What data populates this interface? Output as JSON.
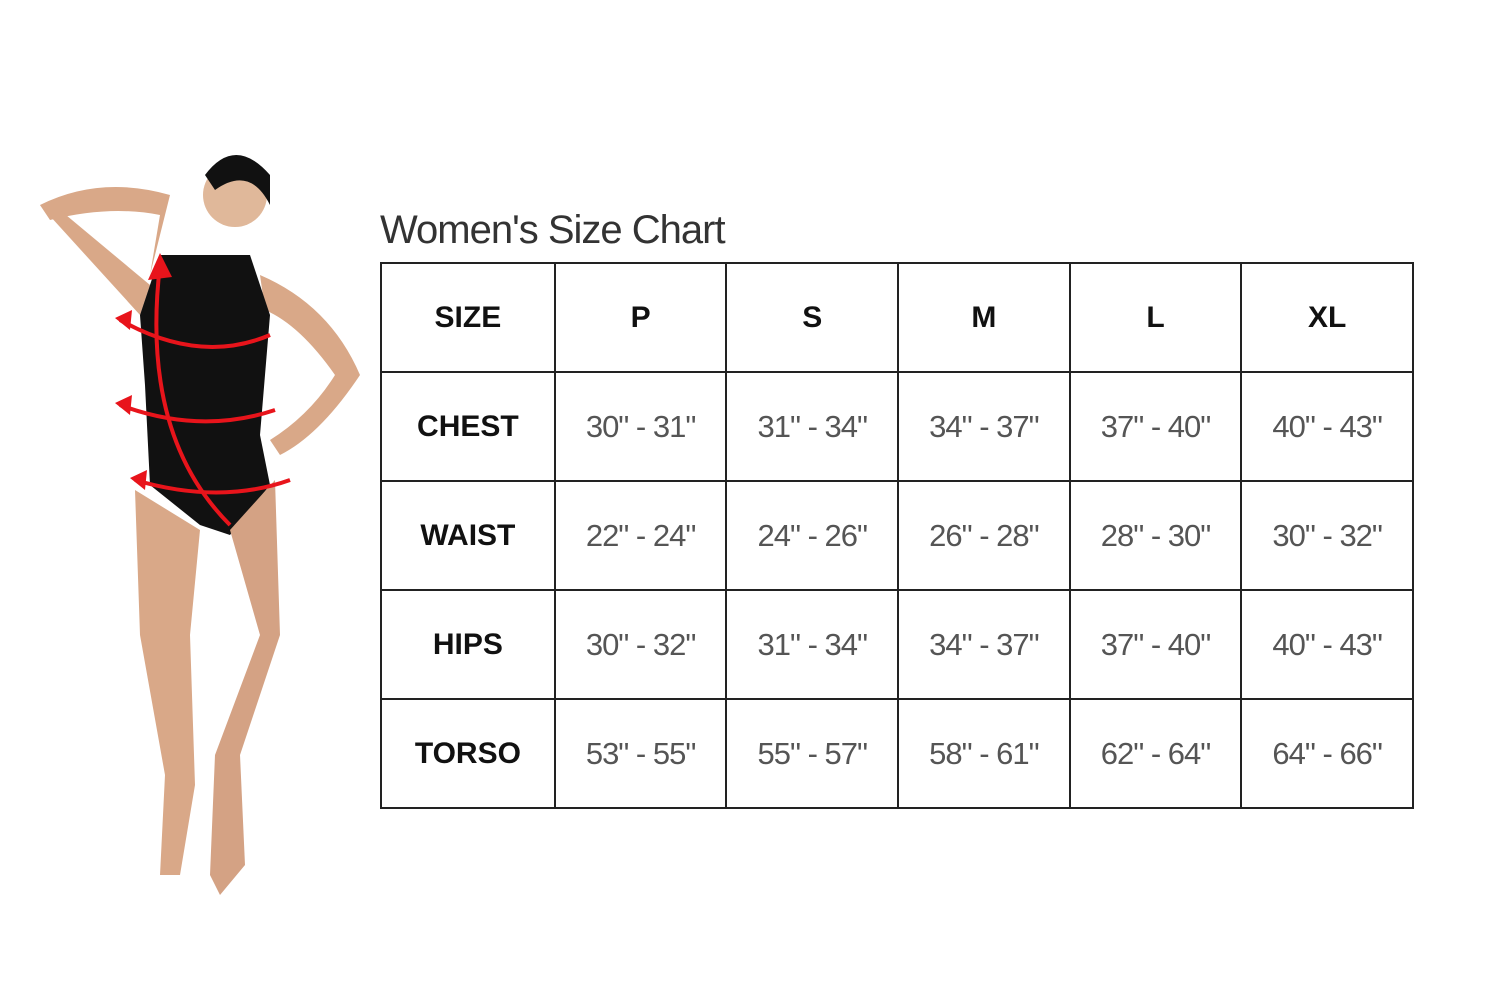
{
  "title": "Women's Size Chart",
  "header": {
    "label": "SIZE",
    "sizes": [
      "P",
      "S",
      "M",
      "L",
      "XL"
    ]
  },
  "rows": [
    {
      "label": "CHEST",
      "values": [
        "30\" - 31\"",
        "31\" - 34\"",
        "34\" - 37\"",
        "37\" - 40\"",
        "40\" - 43\""
      ]
    },
    {
      "label": "WAIST",
      "values": [
        "22\" - 24\"",
        "24\" - 26\"",
        "26\" - 28\"",
        "28\" - 30\"",
        "30\" - 32\""
      ]
    },
    {
      "label": "HIPS",
      "values": [
        "30\" - 32\"",
        "31\" - 34\"",
        "34\" - 37\"",
        "37\" - 40\"",
        "40\" - 43\""
      ]
    },
    {
      "label": "TORSO",
      "values": [
        "53\" - 55\"",
        "55\" - 57\"",
        "58\" - 61\"",
        "62\" - 64\"",
        "64\" - 66\""
      ]
    }
  ],
  "colors": {
    "arrow": "#e8141b",
    "leotard": "#111111",
    "skin": "#d9a888"
  }
}
